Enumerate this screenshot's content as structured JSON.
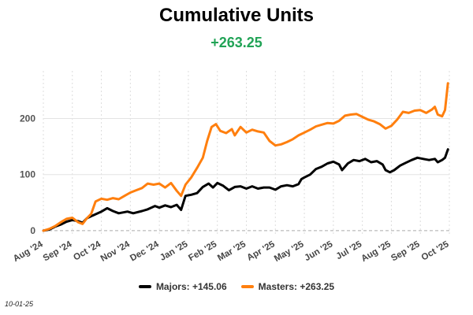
{
  "title": "Cumulative Units",
  "subtitle": "+263.25",
  "date_stamp": "10-01-25",
  "legend": [
    {
      "label": "Majors: +145.06",
      "color": "#000000"
    },
    {
      "label": "Masters: +263.25",
      "color": "#ff7f0e"
    }
  ],
  "chart_data": {
    "type": "line",
    "title": "Cumulative Units",
    "subtitle": "+263.25",
    "xlabel": "",
    "ylabel": "",
    "x_ticks": [
      "Aug '24",
      "Sep '24",
      "Oct '24",
      "Nov '24",
      "Dec '24",
      "Jan '25",
      "Feb '25",
      "Mar '25",
      "Apr '25",
      "May '25",
      "Jun '25",
      "Jul '25",
      "Aug '25",
      "Sep '25",
      "Oct '25"
    ],
    "y_ticks": [
      0,
      100,
      200
    ],
    "ylim": [
      -10,
      285
    ],
    "grid": {
      "horizontal": true,
      "vertical": "dotted"
    },
    "legend_position": "bottom",
    "x_unit": "months since Aug '24",
    "series": [
      {
        "name": "Majors",
        "label": "Majors: +145.06",
        "color": "#000000",
        "points": [
          [
            0,
            0
          ],
          [
            0.2,
            2
          ],
          [
            0.4,
            7
          ],
          [
            0.6,
            11
          ],
          [
            0.8,
            16
          ],
          [
            1.0,
            19
          ],
          [
            1.2,
            17
          ],
          [
            1.35,
            14
          ],
          [
            1.5,
            22
          ],
          [
            1.7,
            27
          ],
          [
            2.0,
            34
          ],
          [
            2.2,
            40
          ],
          [
            2.4,
            35
          ],
          [
            2.6,
            31
          ],
          [
            2.9,
            34
          ],
          [
            3.1,
            31
          ],
          [
            3.4,
            35
          ],
          [
            3.6,
            38
          ],
          [
            3.85,
            44
          ],
          [
            4.0,
            41
          ],
          [
            4.2,
            45
          ],
          [
            4.4,
            42
          ],
          [
            4.6,
            46
          ],
          [
            4.75,
            37
          ],
          [
            4.9,
            62
          ],
          [
            5.1,
            64
          ],
          [
            5.3,
            67
          ],
          [
            5.5,
            78
          ],
          [
            5.7,
            84
          ],
          [
            5.85,
            77
          ],
          [
            6.0,
            85
          ],
          [
            6.2,
            80
          ],
          [
            6.4,
            72
          ],
          [
            6.6,
            78
          ],
          [
            6.8,
            79
          ],
          [
            7.0,
            75
          ],
          [
            7.2,
            79
          ],
          [
            7.4,
            75
          ],
          [
            7.6,
            77
          ],
          [
            7.8,
            77
          ],
          [
            8.0,
            73
          ],
          [
            8.2,
            79
          ],
          [
            8.4,
            81
          ],
          [
            8.6,
            79
          ],
          [
            8.8,
            83
          ],
          [
            8.9,
            92
          ],
          [
            9.0,
            95
          ],
          [
            9.2,
            100
          ],
          [
            9.4,
            110
          ],
          [
            9.6,
            114
          ],
          [
            9.8,
            120
          ],
          [
            10.0,
            123
          ],
          [
            10.2,
            118
          ],
          [
            10.3,
            108
          ],
          [
            10.5,
            120
          ],
          [
            10.7,
            126
          ],
          [
            10.9,
            124
          ],
          [
            11.1,
            128
          ],
          [
            11.3,
            122
          ],
          [
            11.5,
            124
          ],
          [
            11.7,
            118
          ],
          [
            11.8,
            108
          ],
          [
            11.95,
            104
          ],
          [
            12.1,
            108
          ],
          [
            12.3,
            116
          ],
          [
            12.5,
            121
          ],
          [
            12.7,
            126
          ],
          [
            12.9,
            130
          ],
          [
            13.1,
            128
          ],
          [
            13.3,
            126
          ],
          [
            13.5,
            128
          ],
          [
            13.6,
            122
          ],
          [
            13.75,
            126
          ],
          [
            13.85,
            130
          ],
          [
            13.95,
            145
          ]
        ]
      },
      {
        "name": "Masters",
        "label": "Masters: +263.25",
        "color": "#ff7f0e",
        "points": [
          [
            0,
            0
          ],
          [
            0.2,
            3
          ],
          [
            0.4,
            8
          ],
          [
            0.6,
            15
          ],
          [
            0.8,
            21
          ],
          [
            1.0,
            23
          ],
          [
            1.2,
            15
          ],
          [
            1.35,
            12
          ],
          [
            1.5,
            22
          ],
          [
            1.65,
            30
          ],
          [
            1.8,
            52
          ],
          [
            2.0,
            57
          ],
          [
            2.2,
            55
          ],
          [
            2.4,
            58
          ],
          [
            2.6,
            56
          ],
          [
            2.8,
            62
          ],
          [
            3.0,
            68
          ],
          [
            3.2,
            72
          ],
          [
            3.4,
            76
          ],
          [
            3.6,
            84
          ],
          [
            3.8,
            82
          ],
          [
            4.0,
            84
          ],
          [
            4.2,
            77
          ],
          [
            4.4,
            85
          ],
          [
            4.6,
            71
          ],
          [
            4.75,
            62
          ],
          [
            4.9,
            82
          ],
          [
            5.1,
            95
          ],
          [
            5.3,
            112
          ],
          [
            5.5,
            130
          ],
          [
            5.65,
            160
          ],
          [
            5.8,
            185
          ],
          [
            5.95,
            190
          ],
          [
            6.1,
            178
          ],
          [
            6.3,
            174
          ],
          [
            6.5,
            181
          ],
          [
            6.6,
            170
          ],
          [
            6.8,
            185
          ],
          [
            7.0,
            175
          ],
          [
            7.2,
            180
          ],
          [
            7.4,
            177
          ],
          [
            7.6,
            175
          ],
          [
            7.8,
            160
          ],
          [
            8.0,
            152
          ],
          [
            8.2,
            154
          ],
          [
            8.4,
            158
          ],
          [
            8.6,
            163
          ],
          [
            8.8,
            170
          ],
          [
            9.0,
            175
          ],
          [
            9.2,
            180
          ],
          [
            9.4,
            186
          ],
          [
            9.6,
            189
          ],
          [
            9.8,
            192
          ],
          [
            10.0,
            191
          ],
          [
            10.2,
            196
          ],
          [
            10.4,
            205
          ],
          [
            10.6,
            207
          ],
          [
            10.8,
            208
          ],
          [
            11.0,
            203
          ],
          [
            11.2,
            198
          ],
          [
            11.4,
            195
          ],
          [
            11.6,
            190
          ],
          [
            11.8,
            182
          ],
          [
            12.0,
            187
          ],
          [
            12.2,
            198
          ],
          [
            12.4,
            212
          ],
          [
            12.6,
            210
          ],
          [
            12.8,
            214
          ],
          [
            13.0,
            215
          ],
          [
            13.2,
            210
          ],
          [
            13.4,
            216
          ],
          [
            13.5,
            221
          ],
          [
            13.6,
            207
          ],
          [
            13.75,
            204
          ],
          [
            13.85,
            215
          ],
          [
            13.95,
            263
          ]
        ]
      }
    ]
  }
}
